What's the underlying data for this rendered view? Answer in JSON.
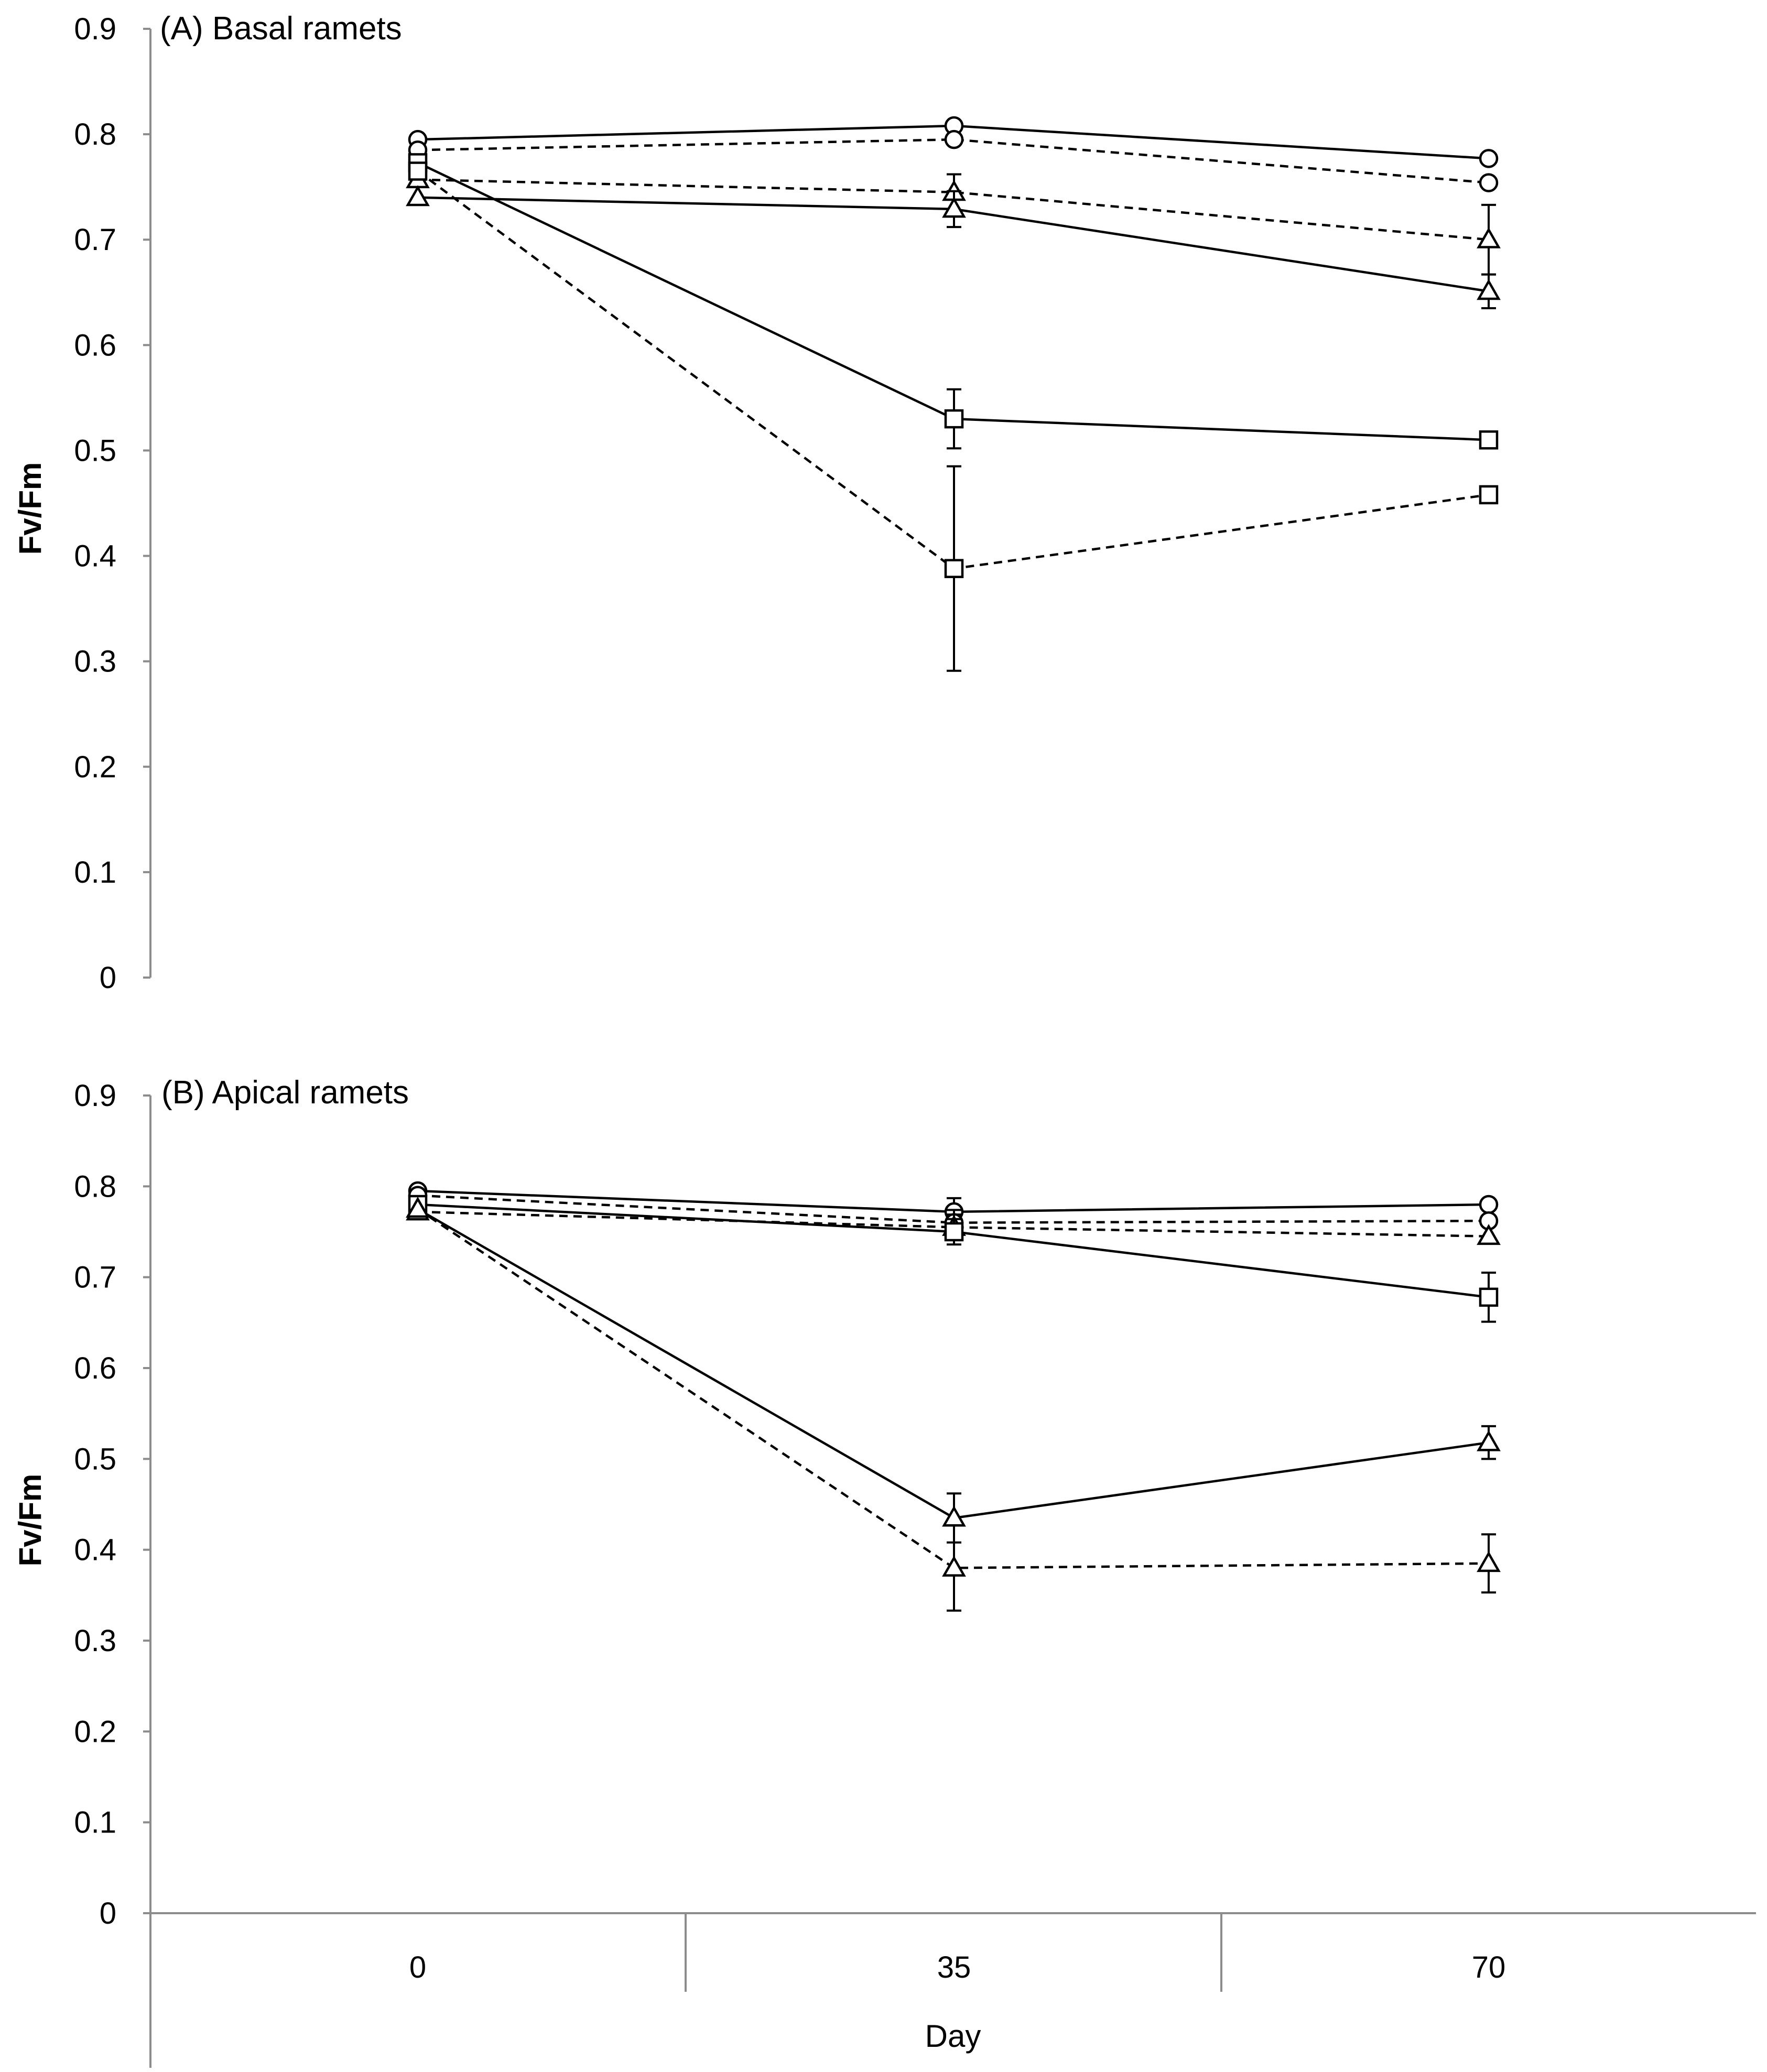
{
  "chart_data": [
    {
      "type": "line",
      "title": "(A) Basal ramets",
      "xlabel": "",
      "ylabel": "Fv/Fm",
      "x": [
        0,
        35,
        70
      ],
      "ylim": [
        0,
        0.9
      ],
      "yticks": [
        "0",
        "0.1",
        "0.2",
        "0.3",
        "0.4",
        "0.5",
        "0.6",
        "0.7",
        "0.8",
        "0.9"
      ],
      "series": [
        {
          "name": "circle solid",
          "marker": "circle",
          "line": "solid",
          "values": [
            0.795,
            0.808,
            0.777
          ],
          "errors": [
            0.004,
            0.004,
            0.004
          ]
        },
        {
          "name": "circle dashed",
          "marker": "circle",
          "line": "dashed",
          "values": [
            0.785,
            0.795,
            0.754
          ],
          "errors": [
            0.004,
            0.004,
            0.004
          ]
        },
        {
          "name": "triangle dashed",
          "marker": "triangle",
          "line": "dashed",
          "values": [
            0.757,
            0.745,
            0.7
          ],
          "errors": [
            0.004,
            0.017,
            0.033
          ]
        },
        {
          "name": "triangle solid",
          "marker": "triangle",
          "line": "solid",
          "values": [
            0.74,
            0.729,
            0.651
          ],
          "errors": [
            0.004,
            0.017,
            0.016
          ]
        },
        {
          "name": "square solid",
          "marker": "square",
          "line": "solid",
          "values": [
            0.773,
            0.53,
            0.51
          ],
          "errors": [
            0.004,
            0.028,
            0.006
          ]
        },
        {
          "name": "square dashed",
          "marker": "square",
          "line": "dashed",
          "values": [
            0.765,
            0.388,
            0.458
          ],
          "errors": [
            0.004,
            0.097,
            0.008
          ]
        }
      ]
    },
    {
      "type": "line",
      "title": "(B) Apical ramets",
      "xlabel": "Day",
      "ylabel": "Fv/Fm",
      "x": [
        0,
        35,
        70
      ],
      "categories": [
        "0",
        "35",
        "70"
      ],
      "ylim": [
        0,
        0.9
      ],
      "yticks": [
        "0",
        "0.1",
        "0.2",
        "0.3",
        "0.4",
        "0.5",
        "0.6",
        "0.7",
        "0.8",
        "0.9"
      ],
      "series": [
        {
          "name": "circle solid",
          "marker": "circle",
          "line": "solid",
          "values": [
            0.795,
            0.772,
            0.78
          ],
          "errors": [
            0.004,
            0.015,
            0.004
          ]
        },
        {
          "name": "circle dashed",
          "marker": "circle",
          "line": "dashed",
          "values": [
            0.79,
            0.76,
            0.762
          ],
          "errors": [
            0.004,
            0.014,
            0.006
          ]
        },
        {
          "name": "triangle dashed",
          "marker": "triangle",
          "line": "dashed",
          "values": [
            0.772,
            0.755,
            0.745
          ],
          "errors": [
            0.004,
            0.014,
            0.006
          ]
        },
        {
          "name": "square solid",
          "marker": "square",
          "line": "solid",
          "values": [
            0.78,
            0.75,
            0.678
          ],
          "errors": [
            0.004,
            0.014,
            0.027
          ]
        },
        {
          "name": "triangle solid",
          "marker": "triangle",
          "line": "solid",
          "values": [
            0.775,
            0.435,
            0.518
          ],
          "errors": [
            0.004,
            0.027,
            0.018
          ]
        },
        {
          "name": "triangle dashed low",
          "marker": "triangle",
          "line": "dashed",
          "values": [
            0.775,
            0.38,
            0.385
          ],
          "errors": [
            0.004,
            0.047,
            0.032
          ]
        }
      ]
    }
  ]
}
